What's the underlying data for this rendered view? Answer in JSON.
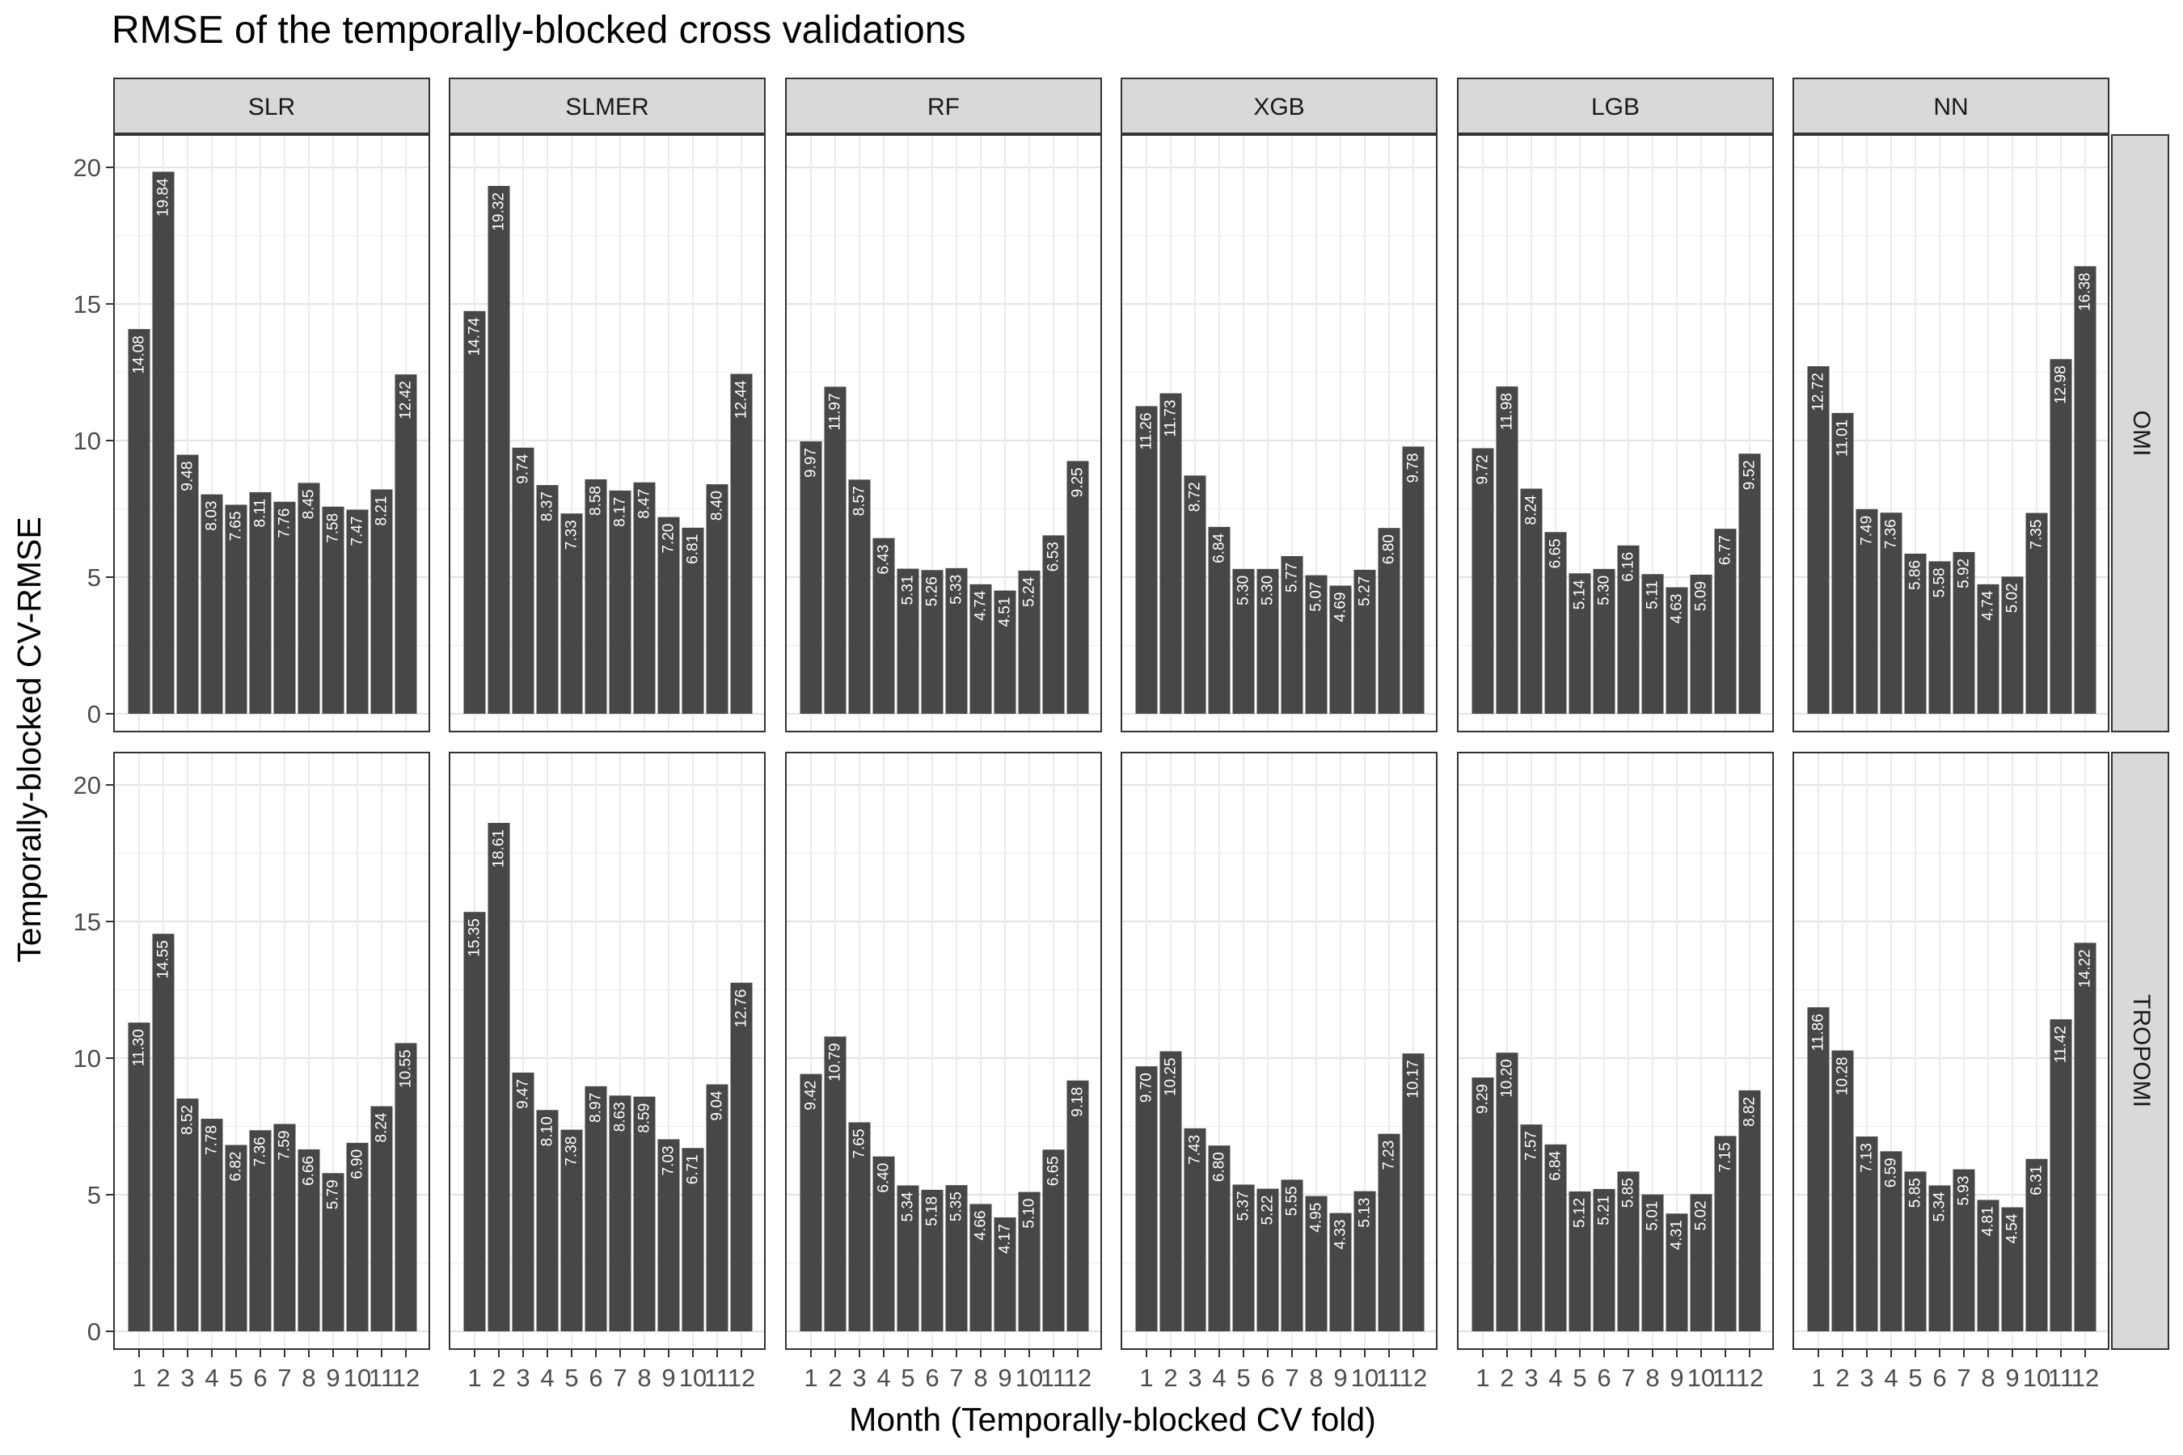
{
  "chart_data": {
    "type": "bar",
    "title": "RMSE of the temporally-blocked cross validations",
    "xlabel": "Month (Temporally-blocked CV fold)",
    "ylabel": "Temporally-blocked CV-RMSE",
    "categories": [
      "1",
      "2",
      "3",
      "4",
      "5",
      "6",
      "7",
      "8",
      "9",
      "10",
      "11",
      "12"
    ],
    "ylim": [
      0,
      20.8
    ],
    "yticks": [
      0,
      5,
      10,
      15,
      20
    ],
    "grid": true,
    "bar_color": "#474747",
    "facet_columns": [
      "SLR",
      "SLMER",
      "RF",
      "XGB",
      "LGB",
      "NN"
    ],
    "facet_rows": [
      "OMI",
      "TROPOMI"
    ],
    "panels": [
      {
        "row": "OMI",
        "col": "SLR",
        "values": [
          14.08,
          19.84,
          9.48,
          8.03,
          7.65,
          8.11,
          7.76,
          8.45,
          7.58,
          7.47,
          8.21,
          12.42
        ]
      },
      {
        "row": "OMI",
        "col": "SLMER",
        "values": [
          14.74,
          19.32,
          9.74,
          8.37,
          7.33,
          8.58,
          8.17,
          8.47,
          7.2,
          6.81,
          8.4,
          12.44
        ]
      },
      {
        "row": "OMI",
        "col": "RF",
        "values": [
          9.97,
          11.97,
          8.57,
          6.43,
          5.31,
          5.26,
          5.33,
          4.74,
          4.51,
          5.24,
          6.53,
          9.25
        ]
      },
      {
        "row": "OMI",
        "col": "XGB",
        "values": [
          11.26,
          11.73,
          8.72,
          6.84,
          5.3,
          5.3,
          5.77,
          5.07,
          4.69,
          5.27,
          6.8,
          9.78
        ]
      },
      {
        "row": "OMI",
        "col": "LGB",
        "values": [
          9.72,
          11.98,
          8.24,
          6.65,
          5.14,
          5.3,
          6.16,
          5.11,
          4.63,
          5.09,
          6.77,
          9.52
        ]
      },
      {
        "row": "OMI",
        "col": "NN",
        "values": [
          12.72,
          11.01,
          7.49,
          7.36,
          5.86,
          5.58,
          5.92,
          4.74,
          5.02,
          7.35,
          12.98,
          16.38
        ]
      },
      {
        "row": "TROPOMI",
        "col": "SLR",
        "values": [
          11.3,
          14.55,
          8.52,
          7.78,
          6.82,
          7.36,
          7.59,
          6.66,
          5.79,
          6.9,
          8.24,
          10.55
        ]
      },
      {
        "row": "TROPOMI",
        "col": "SLMER",
        "values": [
          15.35,
          18.61,
          9.47,
          8.1,
          7.38,
          8.97,
          8.63,
          8.59,
          7.03,
          6.71,
          9.04,
          12.76
        ]
      },
      {
        "row": "TROPOMI",
        "col": "RF",
        "values": [
          9.42,
          10.79,
          7.65,
          6.4,
          5.34,
          5.18,
          5.35,
          4.66,
          4.17,
          5.1,
          6.65,
          9.18
        ]
      },
      {
        "row": "TROPOMI",
        "col": "XGB",
        "values": [
          9.7,
          10.25,
          7.43,
          6.8,
          5.37,
          5.22,
          5.55,
          4.95,
          4.33,
          5.13,
          7.23,
          10.17
        ]
      },
      {
        "row": "TROPOMI",
        "col": "LGB",
        "values": [
          9.29,
          10.2,
          7.57,
          6.84,
          5.12,
          5.21,
          5.85,
          5.01,
          4.31,
          5.02,
          7.15,
          8.82
        ]
      },
      {
        "row": "TROPOMI",
        "col": "NN",
        "values": [
          11.86,
          10.28,
          7.13,
          6.59,
          5.85,
          5.34,
          5.93,
          4.81,
          4.54,
          6.31,
          11.42,
          14.22
        ]
      }
    ]
  }
}
